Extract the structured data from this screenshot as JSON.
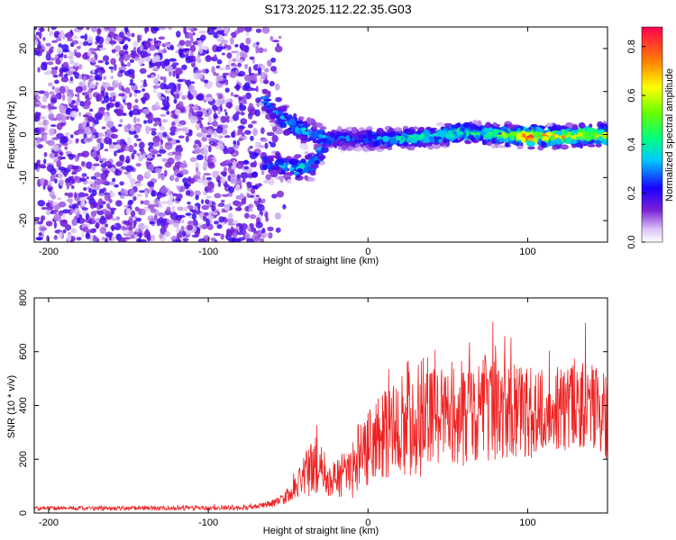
{
  "title": "S173.2025.112.22.35.G03",
  "chart_data": [
    {
      "type": "heatmap",
      "title": "S173.2025.112.22.35.G03",
      "xlabel": "Height of straight line (km)",
      "ylabel": "Frequency (Hz)",
      "xlim": [
        -209,
        150
      ],
      "ylim": [
        -25,
        25
      ],
      "xticks": [
        -200,
        -100,
        0,
        100
      ],
      "yticks": [
        -20,
        -10,
        0,
        10,
        20
      ],
      "colorbar": {
        "label": "Normalized spectral amplitude",
        "range": [
          0.0,
          0.88
        ],
        "ticks": [
          0.0,
          0.2,
          0.4,
          0.6,
          0.8
        ],
        "colormap": "rainbow (white at 0)"
      },
      "description_points": {
        "signal_track_x": [
          -65,
          -55,
          -45,
          -35,
          -25,
          -10,
          0,
          20,
          40,
          60,
          80,
          100,
          120,
          150
        ],
        "signal_track_freq_upper": [
          8,
          4,
          2,
          0,
          -1,
          -1,
          -1,
          -1,
          -0.5,
          0.5,
          0,
          -0.5,
          -0.5,
          0
        ],
        "signal_track_freq_lower": [
          -7,
          -7,
          -8,
          -7,
          -1,
          -1,
          -1,
          -1,
          -0.5,
          0.5,
          0,
          -0.5,
          -0.5,
          0
        ],
        "signal_peak_amplitude": [
          0.3,
          0.35,
          0.4,
          0.35,
          0.35,
          0.3,
          0.35,
          0.45,
          0.45,
          0.5,
          0.5,
          0.85,
          0.7,
          0.7
        ],
        "noise_region_x": [
          -209,
          -75
        ],
        "noise_amplitude": 0.15
      }
    },
    {
      "type": "line",
      "xlabel": "Height of straight line (km)",
      "ylabel": "SNR (10 * v/v)",
      "xlim": [
        -209,
        150
      ],
      "ylim": [
        0,
        800
      ],
      "xticks": [
        -200,
        -100,
        0,
        100
      ],
      "yticks": [
        0,
        200,
        400,
        600,
        800
      ],
      "color": "#ee2222",
      "envelope": {
        "x": [
          -209,
          -150,
          -100,
          -75,
          -65,
          -55,
          -45,
          -40,
          -35,
          -30,
          -25,
          -20,
          -15,
          -10,
          -5,
          0,
          5,
          10,
          15,
          20,
          25,
          30,
          40,
          50,
          60,
          70,
          80,
          90,
          100,
          110,
          120,
          130,
          140,
          150
        ],
        "mean": [
          18,
          18,
          18,
          20,
          28,
          45,
          95,
          140,
          170,
          175,
          130,
          120,
          150,
          150,
          230,
          240,
          280,
          290,
          300,
          330,
          360,
          370,
          370,
          370,
          370,
          390,
          390,
          380,
          370,
          380,
          390,
          390,
          410,
          330
        ],
        "spread": [
          8,
          8,
          8,
          8,
          12,
          20,
          40,
          70,
          120,
          90,
          70,
          80,
          90,
          110,
          140,
          140,
          150,
          170,
          180,
          200,
          230,
          250,
          200,
          200,
          200,
          210,
          200,
          180,
          170,
          170,
          160,
          160,
          170,
          170
        ]
      }
    }
  ]
}
